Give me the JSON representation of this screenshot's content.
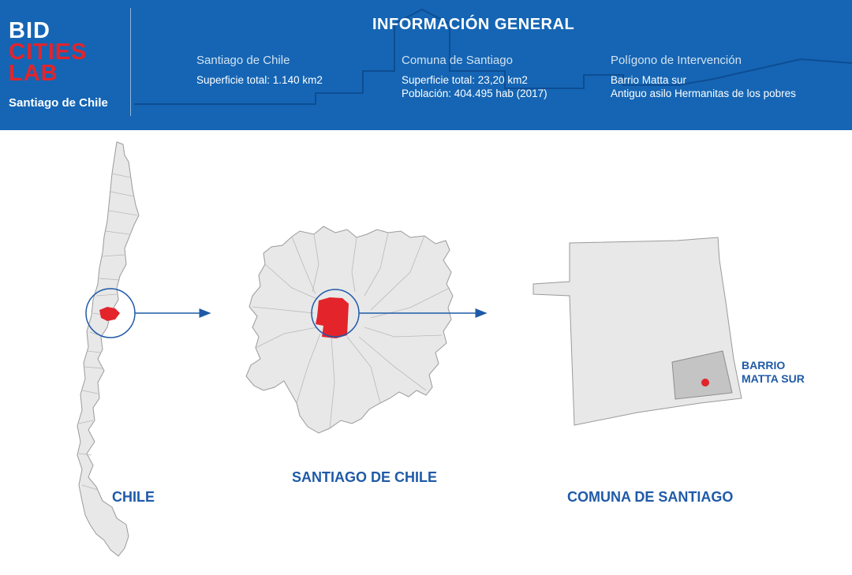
{
  "header": {
    "logo": {
      "line1": "BID",
      "line2": "CITIES",
      "line3": "LAB",
      "city": "Santiago de Chile"
    },
    "title": "INFORMACIÓN GENERAL",
    "columns": [
      {
        "heading": "Santiago de Chile",
        "lines": [
          "Superficie total: 1.140 km2"
        ]
      },
      {
        "heading": "Comuna de Santiago",
        "lines": [
          "Superficie total: 23,20 km2",
          "Población: 404.495 hab (2017)"
        ]
      },
      {
        "heading": "Polígono de Intervención",
        "lines": [
          "Barrio Matta sur",
          "Antiguo asilo Hermanitas de los pobres"
        ]
      }
    ]
  },
  "maps": {
    "chile_label": "CHILE",
    "santiago_label": "SANTIAGO DE CHILE",
    "comuna_label": "COMUNA DE SANTIAGO",
    "barrio_label_line1": "BARRIO",
    "barrio_label_line2": "MATTA SUR"
  },
  "colors": {
    "header_bg": "#1565b4",
    "accent_red": "#e3242b",
    "label_blue": "#1f5aa8",
    "map_fill": "#e8e8e8",
    "map_stroke": "#9a9a9a"
  }
}
